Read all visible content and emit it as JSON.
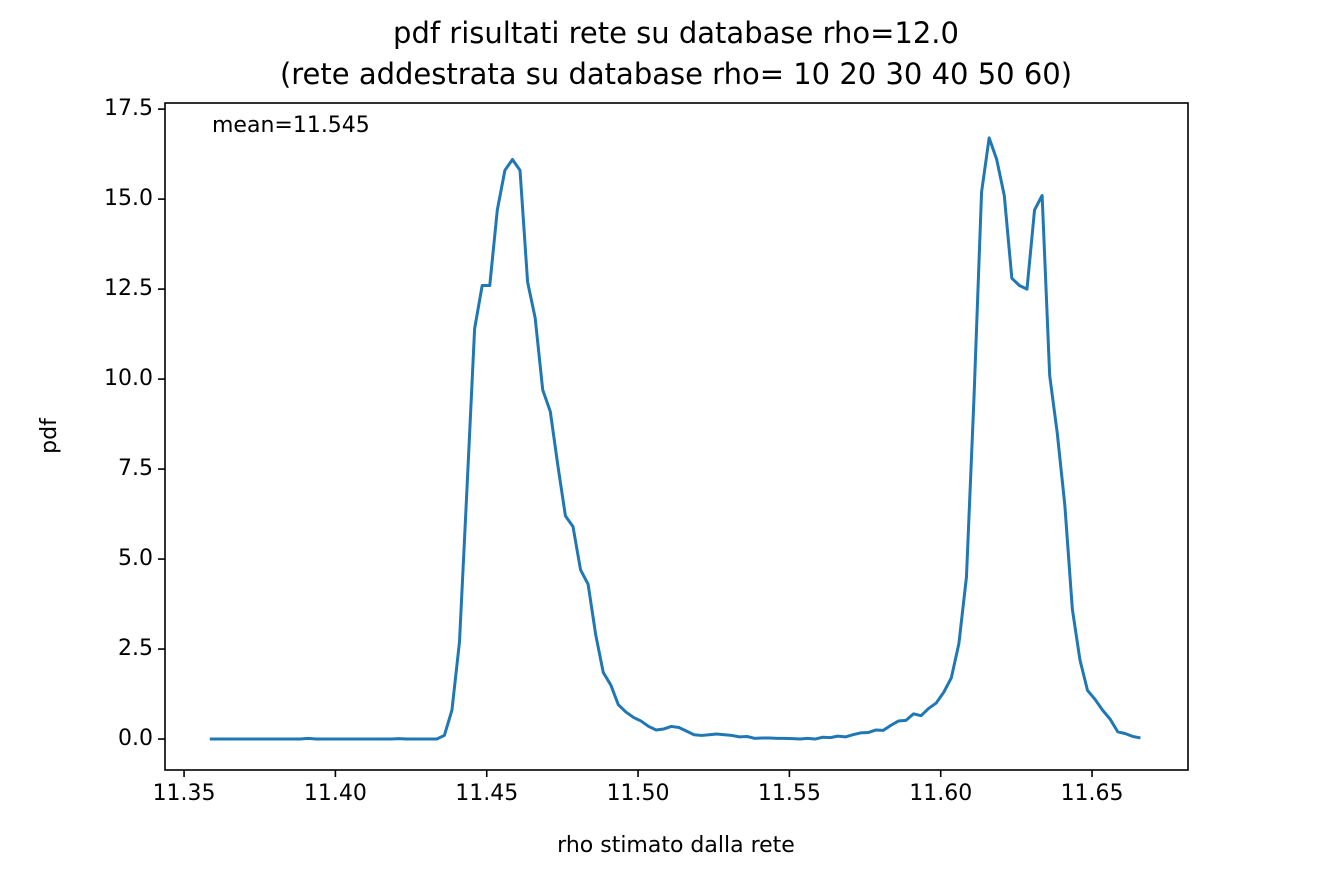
{
  "chart_data": {
    "type": "line",
    "title": "pdf risultati rete su database rho=12.0",
    "subtitle": "(rete addestrata su database rho= 10 20 30 40 50 60)",
    "xlabel": "rho stimato dalla rete",
    "ylabel": "pdf",
    "annotation": "mean=11.545",
    "x": [
      11.3585,
      11.361,
      11.3635,
      11.366,
      11.3685,
      11.371,
      11.3735,
      11.376,
      11.3785,
      11.381,
      11.3835,
      11.386,
      11.3885,
      11.391,
      11.3935,
      11.396,
      11.3985,
      11.401,
      11.4035,
      11.406,
      11.4085,
      11.411,
      11.4135,
      11.416,
      11.4185,
      11.421,
      11.4235,
      11.426,
      11.4285,
      11.431,
      11.4335,
      11.436,
      11.4385,
      11.441,
      11.4435,
      11.446,
      11.4485,
      11.451,
      11.4535,
      11.456,
      11.4585,
      11.461,
      11.4635,
      11.466,
      11.4685,
      11.471,
      11.4735,
      11.476,
      11.4785,
      11.481,
      11.4835,
      11.486,
      11.4885,
      11.491,
      11.4935,
      11.496,
      11.4985,
      11.501,
      11.5035,
      11.506,
      11.5085,
      11.511,
      11.5135,
      11.516,
      11.5185,
      11.521,
      11.5235,
      11.526,
      11.5285,
      11.531,
      11.5335,
      11.536,
      11.5385,
      11.541,
      11.5435,
      11.546,
      11.5485,
      11.551,
      11.5535,
      11.556,
      11.5585,
      11.561,
      11.5635,
      11.566,
      11.5685,
      11.571,
      11.5735,
      11.576,
      11.5785,
      11.581,
      11.5835,
      11.586,
      11.5885,
      11.591,
      11.5935,
      11.596,
      11.5985,
      11.601,
      11.6035,
      11.606,
      11.6085,
      11.611,
      11.6135,
      11.616,
      11.6185,
      11.621,
      11.6235,
      11.626,
      11.6285,
      11.631,
      11.6335,
      11.636,
      11.6385,
      11.641,
      11.6435,
      11.646,
      11.6485,
      11.651,
      11.6535,
      11.656,
      11.6585,
      11.661,
      11.6635,
      11.666
    ],
    "series": [
      {
        "name": "pdf",
        "color": "#1f77b4",
        "values": [
          0,
          0,
          0,
          0,
          0,
          0,
          0,
          0,
          0,
          0,
          0,
          0,
          0,
          0.02,
          0,
          0,
          0,
          0,
          0,
          0,
          0,
          0,
          0,
          0,
          0,
          0.01,
          0,
          0,
          0,
          0,
          0,
          0.1,
          0.8,
          2.7,
          7.0,
          11.4,
          12.6,
          12.6,
          14.7,
          15.8,
          16.1,
          15.8,
          12.7,
          11.7,
          9.7,
          9.1,
          7.6,
          6.2,
          5.9,
          4.7,
          4.3,
          2.9,
          1.85,
          1.5,
          0.95,
          0.75,
          0.6,
          0.5,
          0.35,
          0.25,
          0.28,
          0.35,
          0.32,
          0.22,
          0.12,
          0.1,
          0.12,
          0.14,
          0.12,
          0.1,
          0.06,
          0.07,
          0.02,
          0.03,
          0.03,
          0.02,
          0.02,
          0.01,
          0.0,
          0.02,
          0.0,
          0.05,
          0.04,
          0.08,
          0.06,
          0.12,
          0.17,
          0.18,
          0.25,
          0.24,
          0.38,
          0.5,
          0.52,
          0.7,
          0.65,
          0.85,
          1.0,
          1.3,
          1.7,
          2.65,
          4.5,
          9.5,
          15.2,
          16.7,
          16.1,
          15.1,
          12.8,
          12.6,
          12.5,
          14.7,
          15.1,
          10.1,
          8.5,
          6.5,
          3.6,
          2.2,
          1.35,
          1.1,
          0.8,
          0.55,
          0.2,
          0.15,
          0.07,
          0.03
        ]
      }
    ],
    "xlim": [
      11.3437,
      11.6817
    ],
    "ylim": [
      -0.86,
      17.67
    ],
    "xticks": [
      11.35,
      {
        "value": 11.4,
        "label": "11.40"
      },
      11.45,
      {
        "value": 11.5,
        "label": "11.50"
      },
      11.55,
      {
        "value": 11.6,
        "label": "11.60"
      },
      11.65
    ],
    "yticks": [
      {
        "value": 0,
        "label": "0.0"
      },
      2.5,
      {
        "value": 5,
        "label": "5.0"
      },
      7.5,
      {
        "value": 10,
        "label": "10.0"
      },
      12.5,
      {
        "value": 15,
        "label": "15.0"
      },
      17.5
    ],
    "grid": false
  }
}
